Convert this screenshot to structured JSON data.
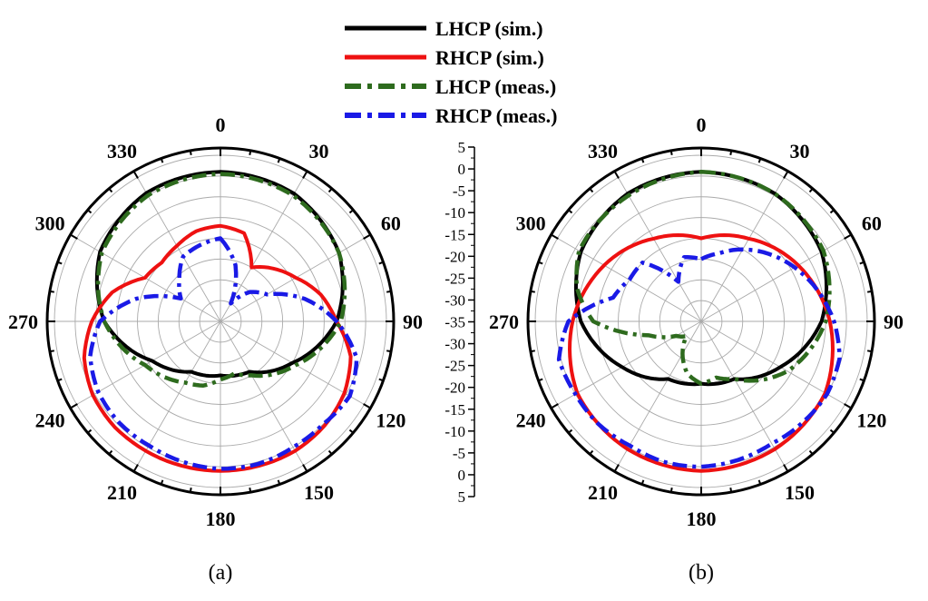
{
  "colors": {
    "lhcp_sim": "#000000",
    "rhcp_sim": "#ee1111",
    "lhcp_meas": "#2e6b1e",
    "rhcp_meas": "#1a1ae6",
    "grid": "#aaaaaa"
  },
  "legend": {
    "placement": "top-center",
    "items": [
      "LHCP (sim.)",
      "RHCP (sim.)",
      "LHCP (meas.)",
      "RHCP (meas.)"
    ]
  },
  "chart_data": [
    {
      "type": "polar-line",
      "caption": "(a)",
      "angular_ticks": [
        "0",
        "30",
        "60",
        "90",
        "120",
        "150",
        "180",
        "210",
        "240",
        "270",
        "300",
        "330"
      ],
      "radial_range_dB": [
        -35,
        5
      ],
      "radial_ticks": [
        "5",
        "0",
        "-5",
        "-10",
        "-15",
        "-20",
        "-25",
        "-30",
        "-35"
      ],
      "grid": true,
      "series": [
        {
          "name": "LHCP (sim.)",
          "style": "solid",
          "theta": [
            0,
            30,
            60,
            90,
            120,
            150,
            180,
            210,
            240,
            270,
            300,
            330,
            360
          ],
          "r": [
            1,
            0.5,
            -2,
            -7,
            -15,
            -21,
            -22,
            -21,
            -16,
            -7,
            -1.5,
            0.7,
            1
          ]
        },
        {
          "name": "RHCP (sim.)",
          "style": "solid",
          "theta": [
            0,
            15,
            30,
            45,
            60,
            75,
            90,
            105,
            120,
            135,
            150,
            165,
            180,
            195,
            210,
            225,
            240,
            255,
            270,
            285,
            300,
            315,
            330,
            345,
            360
          ],
          "r": [
            -12,
            -13,
            -20,
            -17,
            -14,
            -10,
            -7,
            -2.5,
            -0.5,
            0.5,
            1,
            1,
            1,
            1,
            1,
            1,
            0.5,
            -1,
            -4,
            -8,
            -14,
            -15,
            -14,
            -12.5,
            -12
          ]
        },
        {
          "name": "LHCP (meas.)",
          "style": "dashdot",
          "theta": [
            0,
            30,
            60,
            90,
            120,
            150,
            165,
            180,
            195,
            210,
            240,
            270,
            300,
            330,
            360
          ],
          "r": [
            0.5,
            0,
            -2,
            -6,
            -14,
            -20,
            -22,
            -21,
            -19,
            -18,
            -14,
            -7,
            -2,
            0,
            0.5
          ]
        },
        {
          "name": "RHCP (meas.)",
          "style": "dashdot",
          "theta": [
            0,
            15,
            30,
            45,
            60,
            75,
            90,
            105,
            120,
            135,
            150,
            165,
            180,
            195,
            210,
            225,
            240,
            255,
            270,
            285,
            300,
            315,
            330,
            345,
            360
          ],
          "r": [
            -15,
            -21,
            -30,
            -25,
            -22,
            -14,
            -7,
            -1,
            1,
            0,
            0,
            0.5,
            0.5,
            0,
            -0.5,
            -0.5,
            -1,
            -2.5,
            -6,
            -14,
            -24,
            -21,
            -17,
            -16,
            -15
          ]
        }
      ]
    },
    {
      "type": "polar-line",
      "caption": "(b)",
      "angular_ticks": [
        "0",
        "30",
        "60",
        "90",
        "120",
        "150",
        "180",
        "210",
        "240",
        "270",
        "300",
        "330"
      ],
      "radial_range_dB": [
        -35,
        5
      ],
      "radial_ticks": [
        "5",
        "0",
        "-5",
        "-10",
        "-15",
        "-20",
        "-25",
        "-30",
        "-35"
      ],
      "grid": true,
      "series": [
        {
          "name": "LHCP (sim.)",
          "style": "solid",
          "theta": [
            0,
            30,
            60,
            90,
            120,
            150,
            180,
            210,
            240,
            270,
            300,
            330,
            360
          ],
          "r": [
            1,
            0.5,
            -1.5,
            -6,
            -13,
            -19,
            -20,
            -19,
            -13,
            -6,
            -1.5,
            0.5,
            1
          ]
        },
        {
          "name": "RHCP (sim.)",
          "style": "solid",
          "theta": [
            0,
            30,
            60,
            90,
            120,
            150,
            180,
            210,
            240,
            270,
            300,
            330,
            360
          ],
          "r": [
            -15,
            -12,
            -8,
            -4,
            -0.5,
            0.5,
            1,
            0.5,
            -0.5,
            -4,
            -8,
            -12,
            -15
          ]
        },
        {
          "name": "LHCP (meas.)",
          "style": "dashdot",
          "theta": [
            0,
            30,
            60,
            90,
            120,
            135,
            150,
            165,
            180,
            195,
            210,
            225,
            240,
            255,
            270,
            285,
            300,
            330,
            360
          ],
          "r": [
            1,
            0.5,
            -1,
            -5,
            -11,
            -15,
            -19,
            -21,
            -20,
            -22,
            -26,
            -30,
            -28,
            -22,
            -9,
            -4,
            -1,
            0,
            1
          ]
        },
        {
          "name": "RHCP (meas.)",
          "style": "dashdot",
          "theta": [
            0,
            15,
            30,
            45,
            60,
            75,
            90,
            105,
            120,
            135,
            150,
            165,
            180,
            195,
            210,
            225,
            240,
            255,
            270,
            285,
            300,
            315,
            330,
            345,
            360
          ],
          "r": [
            -20,
            -18,
            -15,
            -12,
            -9,
            -6,
            -3,
            -0.5,
            0,
            -0.5,
            -1,
            -0.5,
            0,
            0,
            -0.5,
            0,
            0,
            0.5,
            -3,
            -13,
            -15,
            -15,
            -24,
            -19,
            -20
          ]
        }
      ]
    }
  ]
}
